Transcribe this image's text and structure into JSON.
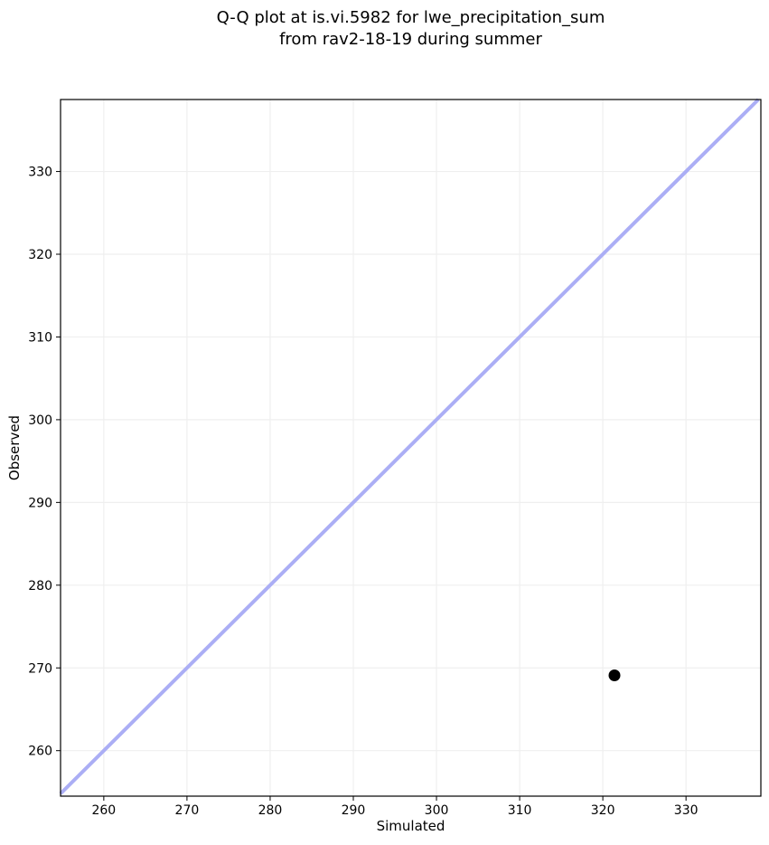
{
  "title": {
    "line1": "Q-Q plot at is.vi.5982 for lwe_precipitation_sum",
    "line2": "from rav2-18-19 during summer"
  },
  "chart_data": {
    "type": "scatter",
    "title": "Q-Q plot at is.vi.5982 for lwe_precipitation_sum\nfrom rav2-18-19 during summer",
    "xlabel": "Simulated",
    "ylabel": "Observed",
    "xlim": [
      254.8,
      339.0
    ],
    "ylim": [
      254.5,
      338.7
    ],
    "xticks": [
      260,
      270,
      280,
      290,
      300,
      310,
      320,
      330
    ],
    "yticks": [
      260,
      270,
      280,
      290,
      300,
      310,
      320,
      330
    ],
    "grid": true,
    "legend": null,
    "points": [
      {
        "x": 321.4,
        "y": 269.1
      }
    ],
    "identity_line": {
      "slope": 1,
      "intercept": 0,
      "color": "#abaef5",
      "width": 4
    },
    "colors": {
      "point": "#000000",
      "grid": "#efefef",
      "spine": "#000000",
      "tick": "#000000"
    },
    "point_radius": 6.5
  }
}
